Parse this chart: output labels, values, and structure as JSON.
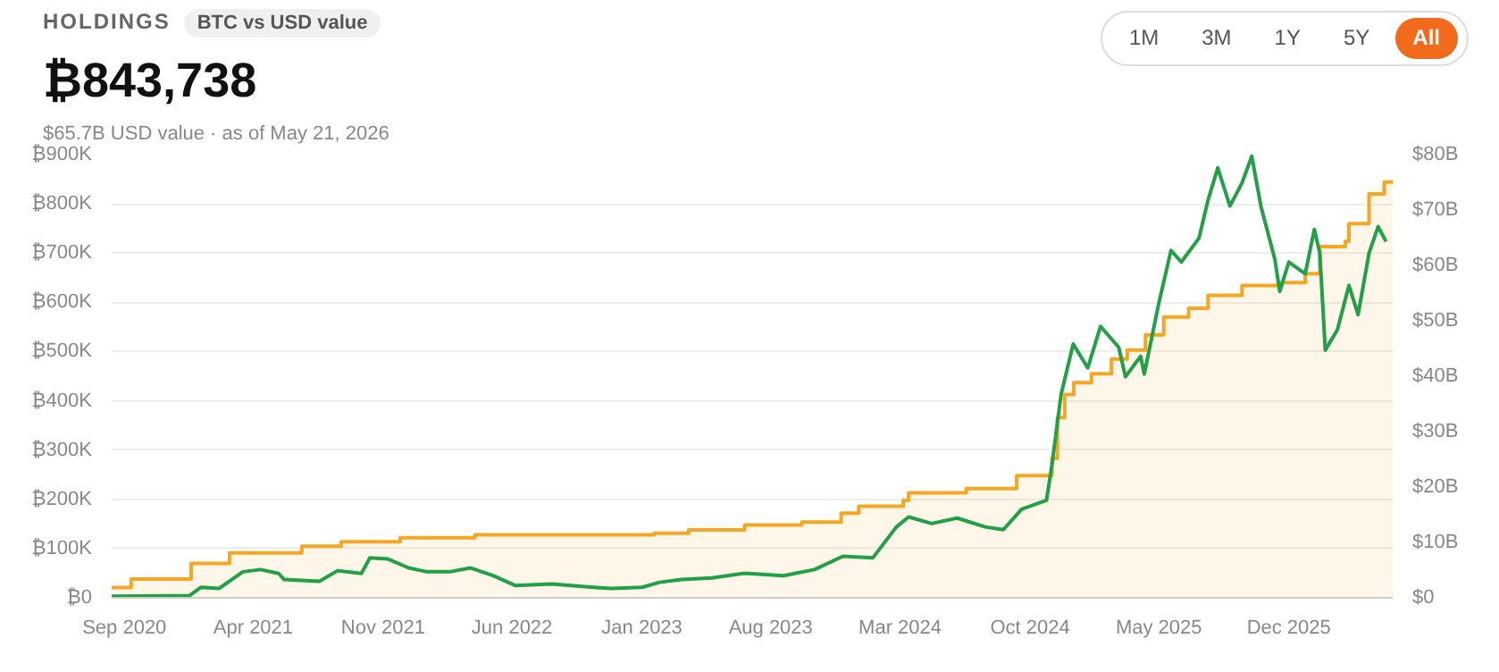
{
  "chart_data": {
    "type": "line",
    "title": "HOLDINGS",
    "subtitle": "BTC vs USD value",
    "annotations": [
      "₿843,738",
      "$65.7B USD value · as of May 21, 2026",
      "1M",
      "3M",
      "1Y",
      "5Y",
      "All"
    ],
    "xlim": [
      "2020-08-11",
      "2026-05-21"
    ],
    "xticks": [
      {
        "value": "2020-09-01",
        "label": "Sep 2020"
      },
      {
        "value": "2021-04-01",
        "label": "Apr 2021"
      },
      {
        "value": "2021-11-01",
        "label": "Nov 2021"
      },
      {
        "value": "2022-06-01",
        "label": "Jun 2022"
      },
      {
        "value": "2023-01-01",
        "label": "Jan 2023"
      },
      {
        "value": "2023-08-01",
        "label": "Aug 2023"
      },
      {
        "value": "2024-03-01",
        "label": "Mar 2024"
      },
      {
        "value": "2024-10-01",
        "label": "Oct 2024"
      },
      {
        "value": "2025-05-01",
        "label": "May 2025"
      },
      {
        "value": "2025-12-01",
        "label": "Dec 2025"
      }
    ],
    "ylim": [
      0,
      900000
    ],
    "yticks": [
      {
        "value": 0,
        "label": "₿0"
      },
      {
        "value": 100000,
        "label": "₿100K"
      },
      {
        "value": 200000,
        "label": "₿200K"
      },
      {
        "value": 300000,
        "label": "₿300K"
      },
      {
        "value": 400000,
        "label": "₿400K"
      },
      {
        "value": 500000,
        "label": "₿500K"
      },
      {
        "value": 600000,
        "label": "₿600K"
      },
      {
        "value": 700000,
        "label": "₿700K"
      },
      {
        "value": 800000,
        "label": "₿800K"
      },
      {
        "value": 900000,
        "label": "₿900K"
      }
    ],
    "y2lim": [
      0,
      80
    ],
    "y2ticks": [
      {
        "value": 0,
        "label": "$0"
      },
      {
        "value": 10,
        "label": "$10B"
      },
      {
        "value": 20,
        "label": "$20B"
      },
      {
        "value": 30,
        "label": "$30B"
      },
      {
        "value": 40,
        "label": "$40B"
      },
      {
        "value": 50,
        "label": "$50B"
      },
      {
        "value": 60,
        "label": "$60B"
      },
      {
        "value": 70,
        "label": "$70B"
      },
      {
        "value": 80,
        "label": "$80B"
      }
    ],
    "grid": "y",
    "series": [
      {
        "type": "area",
        "color": "#f5a623",
        "x": [
          "2020-08-11",
          "2020-09-12",
          "2020-09-12",
          "2020-12-20",
          "2020-12-20",
          "2021-02-21",
          "2021-02-21",
          "2021-06-20",
          "2021-06-20",
          "2021-08-24",
          "2021-08-24",
          "2021-11-29",
          "2021-11-29",
          "2022-04-01",
          "2022-04-01",
          "2023-01-21",
          "2023-01-21",
          "2023-03-19",
          "2023-03-19",
          "2023-06-19",
          "2023-06-19",
          "2023-09-21",
          "2023-09-21",
          "2023-11-25",
          "2023-11-25",
          "2023-12-24",
          "2023-12-24",
          "2024-03-06",
          "2024-03-06",
          "2024-03-15",
          "2024-03-15",
          "2024-06-18",
          "2024-06-18",
          "2024-09-09",
          "2024-09-09",
          "2024-11-06",
          "2024-11-06",
          "2024-11-15",
          "2024-11-15",
          "2024-11-27",
          "2024-11-27",
          "2024-12-12",
          "2024-12-12",
          "2025-01-10",
          "2025-01-10",
          "2025-02-12",
          "2025-02-12",
          "2025-03-10",
          "2025-03-10",
          "2025-04-09",
          "2025-04-09",
          "2025-05-09",
          "2025-05-09",
          "2025-06-19",
          "2025-06-19",
          "2025-07-21",
          "2025-07-21",
          "2025-09-15",
          "2025-09-15",
          "2025-11-15",
          "2025-11-15",
          "2025-12-28",
          "2025-12-28",
          "2026-01-21",
          "2026-01-21",
          "2026-03-04",
          "2026-03-04",
          "2026-03-10",
          "2026-03-10",
          "2026-04-12",
          "2026-04-12",
          "2026-05-07",
          "2026-05-07",
          "2026-05-21"
        ],
        "values": [
          21000,
          21000,
          38000,
          38000,
          70000,
          70000,
          91000,
          91000,
          105000,
          105000,
          114000,
          114000,
          122000,
          122000,
          128000,
          128000,
          131000,
          131000,
          138000,
          138000,
          148000,
          148000,
          154000,
          154000,
          172000,
          172000,
          186000,
          186000,
          198000,
          198000,
          213000,
          213000,
          222000,
          222000,
          248000,
          248000,
          283000,
          283000,
          366000,
          366000,
          413000,
          413000,
          437000,
          437000,
          455000,
          455000,
          485000,
          485000,
          503000,
          503000,
          534000,
          534000,
          570000,
          570000,
          588000,
          588000,
          614000,
          614000,
          634000,
          634000,
          640000,
          640000,
          658000,
          658000,
          713000,
          713000,
          724000,
          724000,
          760000,
          760000,
          820000,
          820000,
          844000,
          844000
        ]
      },
      {
        "color": "#22a045",
        "axis": "y2",
        "x": [
          "2020-08-11",
          "2020-12-17",
          "2021-01-05",
          "2021-02-04",
          "2021-03-15",
          "2021-04-13",
          "2021-05-13",
          "2021-05-22",
          "2021-07-19",
          "2021-08-18",
          "2021-09-26",
          "2021-10-10",
          "2021-11-09",
          "2021-12-13",
          "2022-01-12",
          "2022-02-19",
          "2022-03-25",
          "2022-05-01",
          "2022-06-07",
          "2022-08-06",
          "2022-10-13",
          "2022-11-11",
          "2023-01-01",
          "2023-01-30",
          "2023-03-07",
          "2023-04-26",
          "2023-06-16",
          "2023-06-25",
          "2023-08-22",
          "2023-10-12",
          "2023-11-28",
          "2024-01-16",
          "2024-02-24",
          "2024-03-15",
          "2024-04-22",
          "2024-06-03",
          "2024-07-19",
          "2024-08-18",
          "2024-09-17",
          "2024-10-28",
          "2024-11-06",
          "2024-11-21",
          "2024-12-11",
          "2025-01-04",
          "2025-01-25",
          "2025-02-24",
          "2025-03-07",
          "2025-04-01",
          "2025-04-07",
          "2025-05-01",
          "2025-05-21",
          "2025-06-07",
          "2025-07-06",
          "2025-07-21",
          "2025-08-06",
          "2025-08-26",
          "2025-09-15",
          "2025-10-01",
          "2025-10-16",
          "2025-11-08",
          "2025-11-16",
          "2025-12-01",
          "2025-12-28",
          "2026-01-12",
          "2026-01-21",
          "2026-01-30",
          "2026-02-19",
          "2026-03-10",
          "2026-03-25",
          "2026-04-12",
          "2026-04-27",
          "2026-05-10"
        ],
        "values": [
          0.3,
          0.4,
          1.9,
          1.7,
          4.7,
          5.1,
          4.4,
          3.3,
          3.0,
          4.9,
          4.4,
          7.2,
          7.0,
          5.4,
          4.7,
          4.7,
          5.4,
          4.0,
          2.2,
          2.5,
          1.9,
          1.7,
          1.9,
          2.8,
          3.3,
          3.6,
          4.4,
          4.4,
          4.0,
          5.1,
          7.5,
          7.2,
          12.8,
          14.6,
          13.4,
          14.4,
          12.8,
          12.3,
          16.0,
          17.6,
          24.0,
          36.7,
          45.8,
          41.5,
          49.0,
          45.2,
          39.9,
          43.6,
          40.4,
          53.2,
          62.7,
          60.6,
          64.9,
          71.8,
          77.6,
          70.7,
          74.9,
          79.7,
          70.7,
          61.1,
          55.3,
          60.6,
          58.5,
          66.5,
          62.2,
          44.7,
          48.4,
          56.4,
          51.1,
          62.2,
          67.0,
          64.3
        ]
      }
    ]
  }
}
